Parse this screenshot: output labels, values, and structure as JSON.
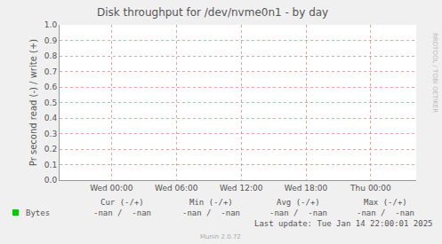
{
  "chart_data": {
    "type": "line",
    "title": "Disk throughput for /dev/nvme0n1 - by day",
    "y_label": "Pr second read (-) / write (+)",
    "x": [
      0,
      6,
      12,
      18,
      24
    ],
    "series": [
      {
        "name": "Bytes",
        "color": "#00cc00",
        "values": [
          null,
          null,
          null,
          null,
          null
        ]
      }
    ],
    "xlim": [
      -4.8,
      28.2
    ],
    "xticks": [
      {
        "value": 0,
        "label": "Wed 00:00"
      },
      {
        "value": 6,
        "label": "Wed 06:00"
      },
      {
        "value": 12,
        "label": "Wed 12:00"
      },
      {
        "value": 18,
        "label": "Wed 18:00"
      },
      {
        "value": 24,
        "label": "Thu 00:00"
      }
    ],
    "ylim": [
      0,
      1
    ],
    "yticks": [
      {
        "value": 0,
        "label": "0.0"
      },
      {
        "value": 0.1,
        "label": "0.1"
      },
      {
        "value": 0.2,
        "label": "0.2"
      },
      {
        "value": 0.3,
        "label": "0.3"
      },
      {
        "value": 0.4,
        "label": "0.4"
      },
      {
        "value": 0.5,
        "label": "0.5"
      },
      {
        "value": 0.6,
        "label": "0.6"
      },
      {
        "value": 0.7,
        "label": "0.7"
      },
      {
        "value": 0.8,
        "label": "0.8"
      },
      {
        "value": 0.9,
        "label": "0.9"
      },
      {
        "value": 1,
        "label": "1.0"
      }
    ],
    "grid": true,
    "legend_table": {
      "headers": [
        "Cur (-/+)",
        "Min (-/+)",
        "Avg (-/+)",
        "Max (-/+)"
      ],
      "rows": [
        {
          "name": "Bytes",
          "cells": [
            "-nan /  -nan",
            "-nan /  -nan",
            "-nan /  -nan",
            "-nan /  -nan"
          ]
        }
      ]
    },
    "last_update": "Last update: Tue Jan 14 22:00:01 2025",
    "footer": "Munin 2.0.72",
    "watermark": "RRDTOOL / TOBI OETIKER"
  }
}
